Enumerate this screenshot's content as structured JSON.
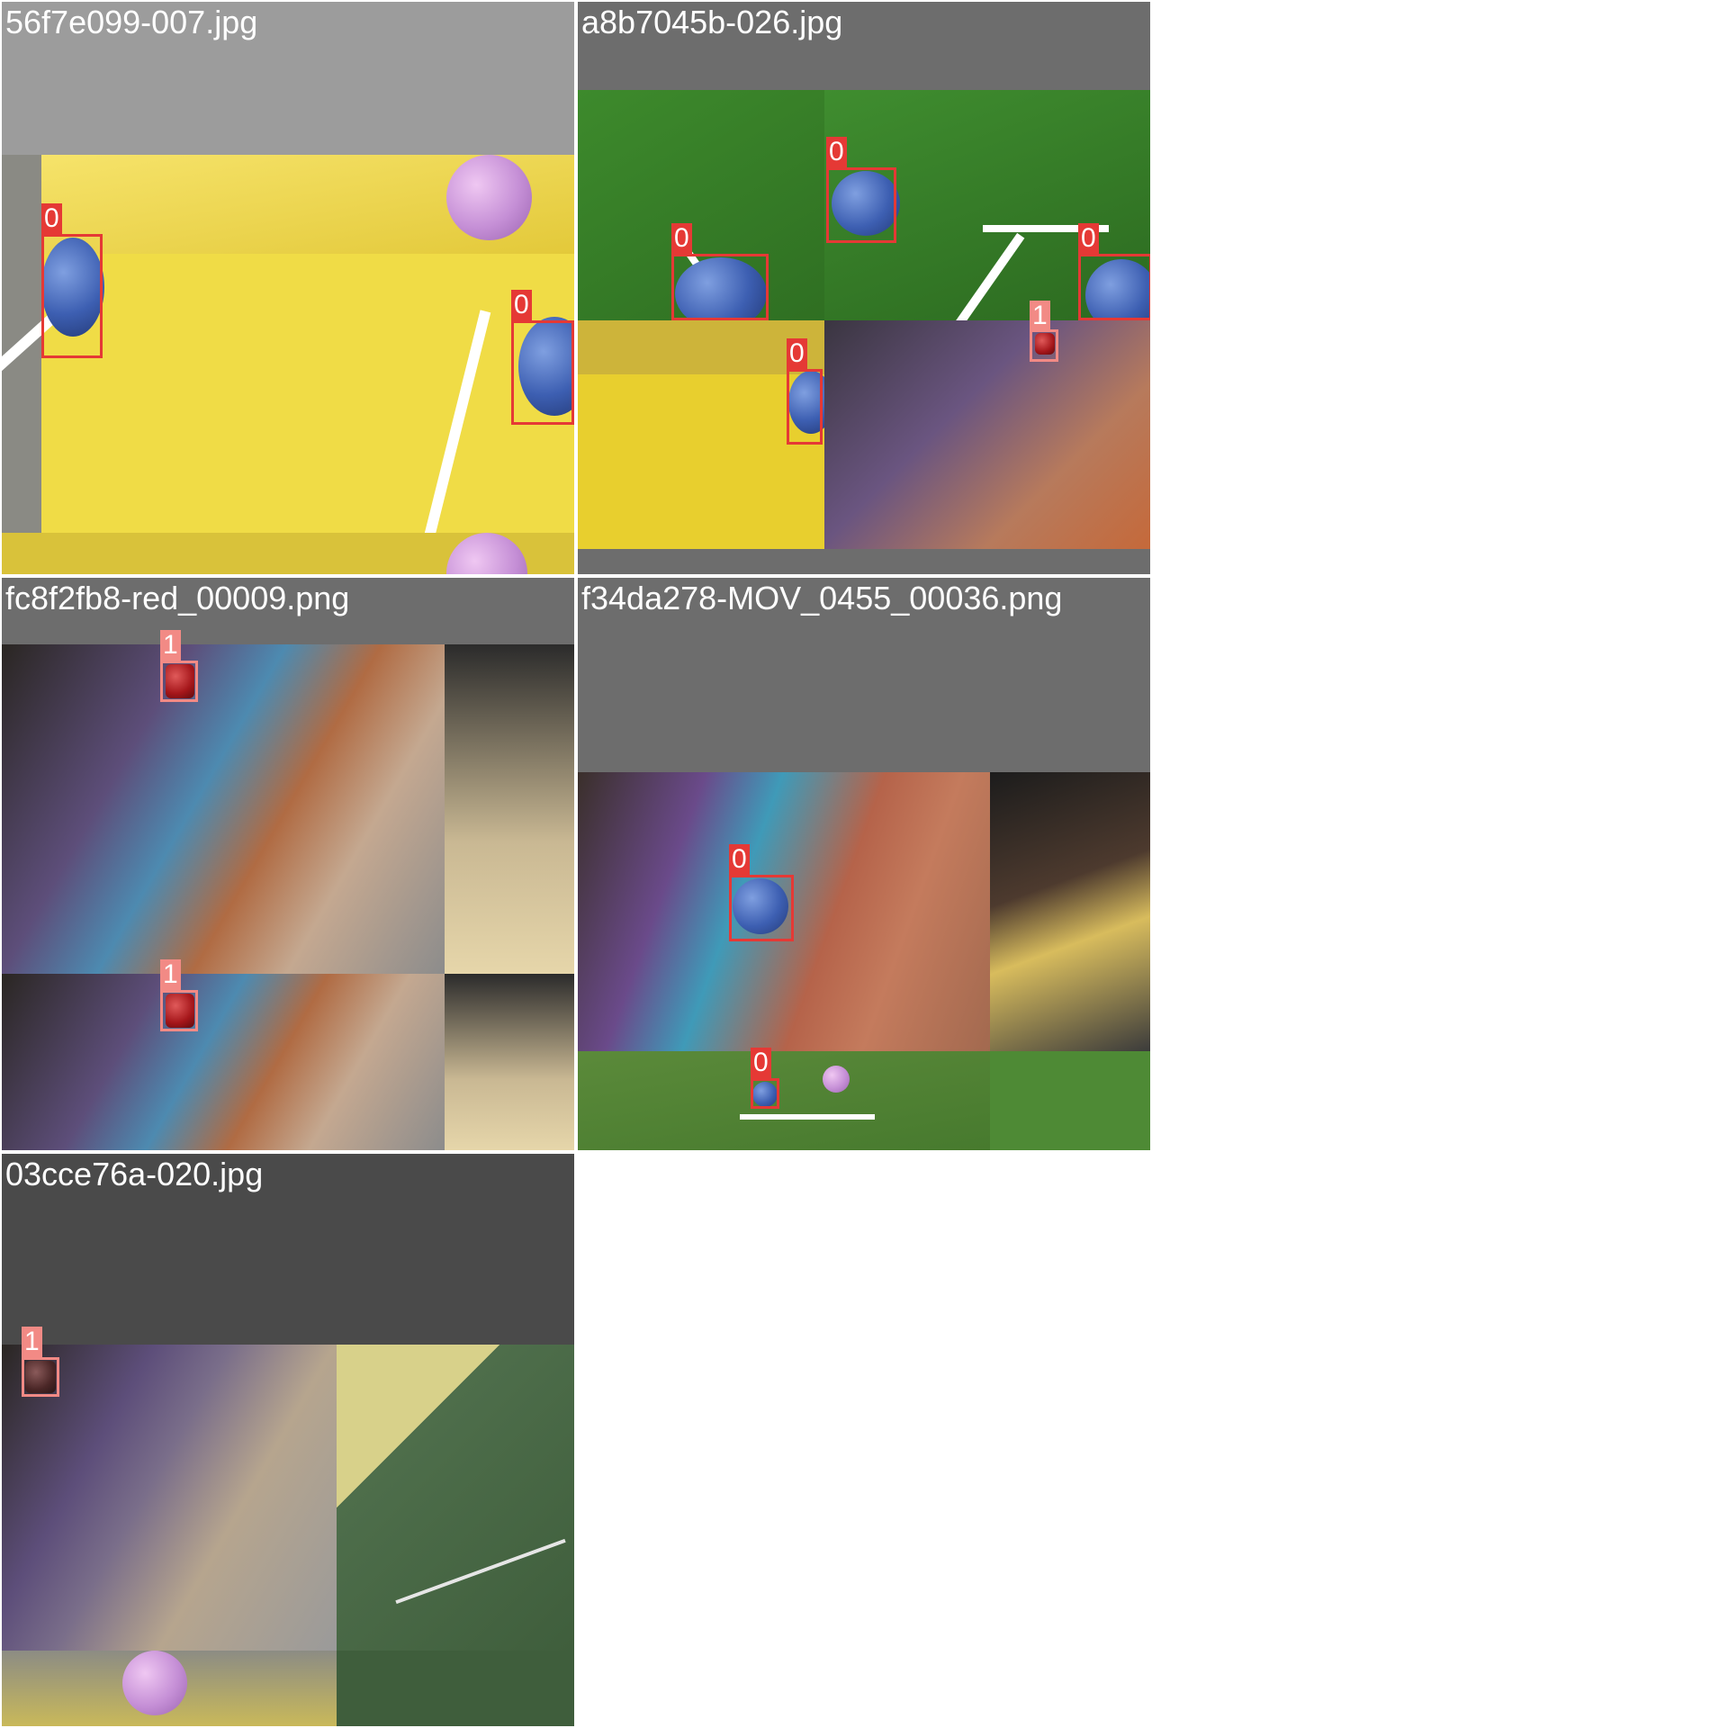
{
  "tiles": [
    {
      "title": "56f7e099-007.jpg",
      "labels": [
        "0",
        "0"
      ]
    },
    {
      "title": "a8b7045b-026.jpg",
      "labels": [
        "0",
        "0",
        "0",
        "0",
        "1"
      ]
    },
    {
      "title": "fc8f2fb8-red_00009.png",
      "labels": [
        "1",
        "1"
      ]
    },
    {
      "title": "f34da278-MOV_0455_00036.png",
      "labels": [
        "0",
        "0"
      ]
    },
    {
      "title": "03cce76a-020.jpg",
      "labels": [
        "1"
      ]
    }
  ],
  "colors": {
    "class0": "#e53935",
    "class1": "#f28a85"
  }
}
